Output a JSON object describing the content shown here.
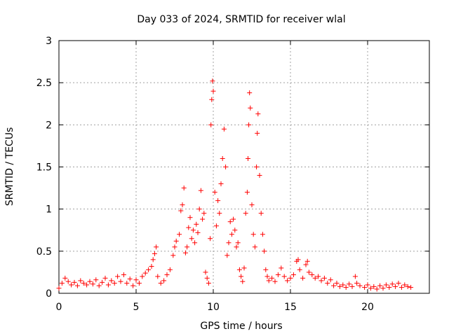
{
  "chart_data": {
    "type": "scatter",
    "title": "Day 033 of 2024, SRMTID for receiver wlal",
    "xlabel": "GPS time / hours",
    "ylabel": "SRMTID / TECUs",
    "xlim": [
      0,
      24
    ],
    "ylim": [
      0,
      3
    ],
    "xticks": [
      0,
      5,
      10,
      15,
      20
    ],
    "xtick_labels": [
      "0",
      "5",
      "10",
      "15",
      "20"
    ],
    "yticks": [
      0,
      0.5,
      1,
      1.5,
      2,
      2.5,
      3
    ],
    "ytick_labels": [
      "0",
      "0.5",
      "1",
      "1.5",
      "2",
      "2.5",
      "3"
    ],
    "grid": true,
    "marker": "+",
    "color": "#ff0000",
    "series": [
      {
        "name": "SRMTID",
        "points": [
          [
            0.0,
            0.06
          ],
          [
            0.2,
            0.12
          ],
          [
            0.4,
            0.18
          ],
          [
            0.6,
            0.14
          ],
          [
            0.8,
            0.1
          ],
          [
            1.0,
            0.13
          ],
          [
            1.2,
            0.09
          ],
          [
            1.4,
            0.15
          ],
          [
            1.6,
            0.12
          ],
          [
            1.8,
            0.1
          ],
          [
            2.0,
            0.14
          ],
          [
            2.2,
            0.11
          ],
          [
            2.4,
            0.16
          ],
          [
            2.6,
            0.09
          ],
          [
            2.8,
            0.13
          ],
          [
            3.0,
            0.18
          ],
          [
            3.2,
            0.1
          ],
          [
            3.4,
            0.15
          ],
          [
            3.6,
            0.12
          ],
          [
            3.8,
            0.2
          ],
          [
            4.0,
            0.14
          ],
          [
            4.2,
            0.22
          ],
          [
            4.4,
            0.12
          ],
          [
            4.6,
            0.17
          ],
          [
            4.8,
            0.09
          ],
          [
            5.0,
            0.16
          ],
          [
            5.2,
            0.12
          ],
          [
            5.4,
            0.2
          ],
          [
            5.6,
            0.24
          ],
          [
            5.8,
            0.28
          ],
          [
            6.0,
            0.32
          ],
          [
            6.1,
            0.4
          ],
          [
            6.2,
            0.47
          ],
          [
            6.3,
            0.55
          ],
          [
            6.4,
            0.2
          ],
          [
            6.6,
            0.12
          ],
          [
            6.8,
            0.15
          ],
          [
            7.0,
            0.22
          ],
          [
            7.2,
            0.28
          ],
          [
            7.4,
            0.45
          ],
          [
            7.5,
            0.55
          ],
          [
            7.6,
            0.62
          ],
          [
            7.8,
            0.7
          ],
          [
            7.9,
            0.98
          ],
          [
            8.0,
            1.05
          ],
          [
            8.1,
            1.25
          ],
          [
            8.2,
            0.48
          ],
          [
            8.3,
            0.55
          ],
          [
            8.4,
            0.78
          ],
          [
            8.5,
            0.9
          ],
          [
            8.6,
            0.65
          ],
          [
            8.7,
            0.75
          ],
          [
            8.8,
            0.6
          ],
          [
            8.9,
            0.82
          ],
          [
            9.0,
            0.72
          ],
          [
            9.1,
            1.0
          ],
          [
            9.2,
            1.22
          ],
          [
            9.3,
            0.88
          ],
          [
            9.4,
            0.95
          ],
          [
            9.5,
            0.25
          ],
          [
            9.6,
            0.18
          ],
          [
            9.7,
            0.12
          ],
          [
            9.8,
            0.65
          ],
          [
            9.85,
            2.0
          ],
          [
            9.9,
            2.3
          ],
          [
            9.95,
            2.52
          ],
          [
            10.0,
            2.4
          ],
          [
            10.1,
            1.2
          ],
          [
            10.2,
            0.8
          ],
          [
            10.3,
            1.1
          ],
          [
            10.4,
            0.95
          ],
          [
            10.5,
            1.3
          ],
          [
            10.6,
            1.6
          ],
          [
            10.7,
            1.95
          ],
          [
            10.8,
            1.5
          ],
          [
            10.9,
            0.45
          ],
          [
            11.0,
            0.6
          ],
          [
            11.1,
            0.85
          ],
          [
            11.2,
            0.7
          ],
          [
            11.3,
            0.88
          ],
          [
            11.4,
            0.75
          ],
          [
            11.5,
            0.55
          ],
          [
            11.6,
            0.6
          ],
          [
            11.7,
            0.28
          ],
          [
            11.8,
            0.2
          ],
          [
            11.9,
            0.14
          ],
          [
            12.0,
            0.3
          ],
          [
            12.1,
            0.95
          ],
          [
            12.2,
            1.2
          ],
          [
            12.25,
            1.6
          ],
          [
            12.3,
            2.0
          ],
          [
            12.35,
            2.38
          ],
          [
            12.4,
            2.2
          ],
          [
            12.5,
            1.05
          ],
          [
            12.6,
            0.7
          ],
          [
            12.7,
            0.55
          ],
          [
            12.8,
            1.5
          ],
          [
            12.85,
            1.9
          ],
          [
            12.9,
            2.13
          ],
          [
            13.0,
            1.4
          ],
          [
            13.1,
            0.95
          ],
          [
            13.2,
            0.7
          ],
          [
            13.3,
            0.5
          ],
          [
            13.4,
            0.28
          ],
          [
            13.5,
            0.2
          ],
          [
            13.6,
            0.15
          ],
          [
            13.8,
            0.18
          ],
          [
            14.0,
            0.14
          ],
          [
            14.2,
            0.22
          ],
          [
            14.4,
            0.3
          ],
          [
            14.6,
            0.2
          ],
          [
            14.8,
            0.15
          ],
          [
            15.0,
            0.18
          ],
          [
            15.2,
            0.22
          ],
          [
            15.4,
            0.38
          ],
          [
            15.5,
            0.4
          ],
          [
            15.6,
            0.28
          ],
          [
            15.8,
            0.18
          ],
          [
            16.0,
            0.34
          ],
          [
            16.1,
            0.38
          ],
          [
            16.2,
            0.25
          ],
          [
            16.4,
            0.22
          ],
          [
            16.6,
            0.18
          ],
          [
            16.8,
            0.2
          ],
          [
            17.0,
            0.15
          ],
          [
            17.2,
            0.18
          ],
          [
            17.4,
            0.12
          ],
          [
            17.6,
            0.16
          ],
          [
            17.8,
            0.09
          ],
          [
            18.0,
            0.12
          ],
          [
            18.2,
            0.08
          ],
          [
            18.4,
            0.1
          ],
          [
            18.6,
            0.07
          ],
          [
            18.8,
            0.11
          ],
          [
            19.0,
            0.08
          ],
          [
            19.2,
            0.2
          ],
          [
            19.3,
            0.12
          ],
          [
            19.5,
            0.09
          ],
          [
            19.8,
            0.07
          ],
          [
            20.0,
            0.1
          ],
          [
            20.2,
            0.06
          ],
          [
            20.4,
            0.08
          ],
          [
            20.6,
            0.05
          ],
          [
            20.8,
            0.09
          ],
          [
            21.0,
            0.06
          ],
          [
            21.2,
            0.1
          ],
          [
            21.4,
            0.07
          ],
          [
            21.6,
            0.11
          ],
          [
            21.8,
            0.08
          ],
          [
            22.0,
            0.12
          ],
          [
            22.2,
            0.07
          ],
          [
            22.4,
            0.1
          ],
          [
            22.6,
            0.08
          ],
          [
            22.8,
            0.07
          ]
        ]
      }
    ]
  }
}
